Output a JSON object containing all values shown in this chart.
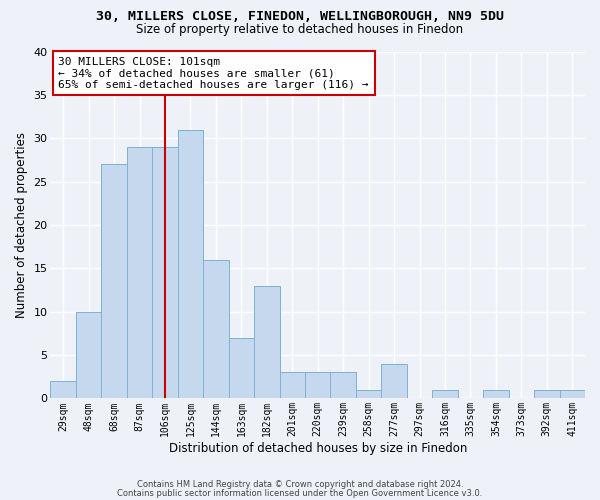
{
  "title_line1": "30, MILLERS CLOSE, FINEDON, WELLINGBOROUGH, NN9 5DU",
  "title_line2": "Size of property relative to detached houses in Finedon",
  "xlabel": "Distribution of detached houses by size in Finedon",
  "ylabel": "Number of detached properties",
  "bar_labels": [
    "29sqm",
    "48sqm",
    "68sqm",
    "87sqm",
    "106sqm",
    "125sqm",
    "144sqm",
    "163sqm",
    "182sqm",
    "201sqm",
    "220sqm",
    "239sqm",
    "258sqm",
    "277sqm",
    "297sqm",
    "316sqm",
    "335sqm",
    "354sqm",
    "373sqm",
    "392sqm",
    "411sqm"
  ],
  "bar_values": [
    2,
    10,
    27,
    29,
    29,
    31,
    16,
    7,
    13,
    3,
    3,
    3,
    1,
    4,
    0,
    1,
    0,
    1,
    0,
    1,
    1
  ],
  "bar_color": "#c5d8ed",
  "bar_edge_color": "#7ab4d4",
  "vline_index": 4,
  "vline_color": "#cc0000",
  "annotation_line1": "30 MILLERS CLOSE: 101sqm",
  "annotation_line2": "← 34% of detached houses are smaller (61)",
  "annotation_line3": "65% of semi-detached houses are larger (116) →",
  "annotation_box_color": "white",
  "annotation_box_edge": "#cc0000",
  "ylim": [
    0,
    40
  ],
  "yticks": [
    0,
    5,
    10,
    15,
    20,
    25,
    30,
    35,
    40
  ],
  "footer_line1": "Contains HM Land Registry data © Crown copyright and database right 2024.",
  "footer_line2": "Contains public sector information licensed under the Open Government Licence v3.0.",
  "bg_color": "#eef2f8",
  "grid_color": "#ffffff"
}
